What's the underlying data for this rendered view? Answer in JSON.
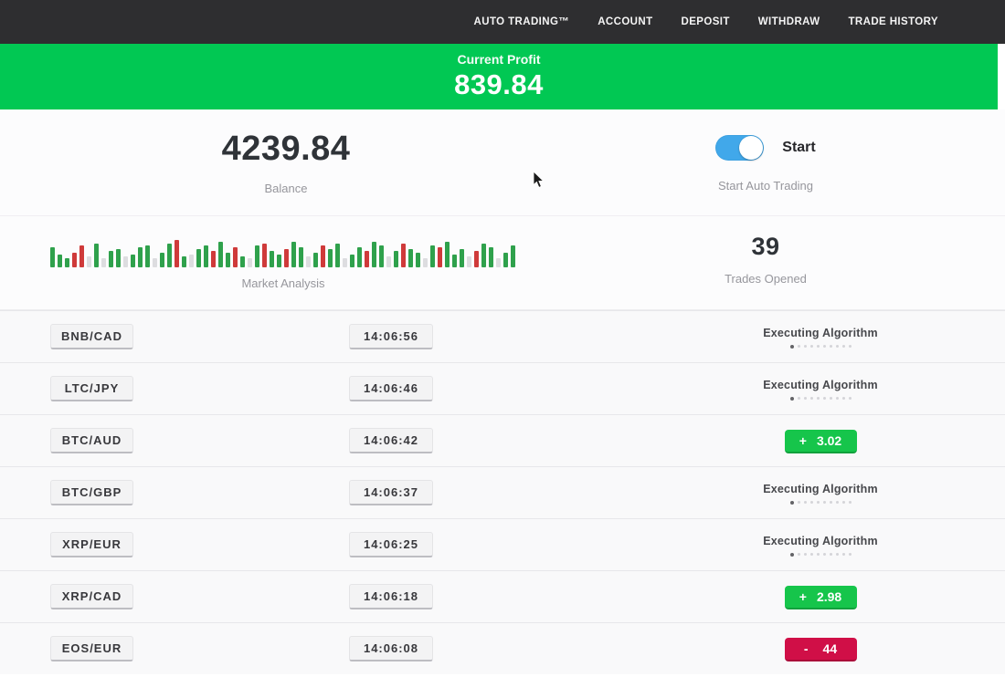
{
  "nav": {
    "items": [
      "AUTO TRADING™",
      "ACCOUNT",
      "DEPOSIT",
      "WITHDRAW",
      "TRADE HISTORY"
    ]
  },
  "banner": {
    "label": "Current Profit",
    "value": "839.84"
  },
  "stats": {
    "balance": {
      "value": "4239.84",
      "label": "Balance"
    },
    "auto_trading": {
      "toggle_label": "Start",
      "label": "Start Auto Trading",
      "toggle_on": true
    },
    "market_analysis": {
      "label": "Market Analysis",
      "bars": [
        [
          22,
          "g"
        ],
        [
          14,
          "g"
        ],
        [
          10,
          "g"
        ],
        [
          16,
          "r"
        ],
        [
          24,
          "r"
        ],
        [
          12,
          "n"
        ],
        [
          26,
          "g"
        ],
        [
          10,
          "n"
        ],
        [
          18,
          "g"
        ],
        [
          20,
          "g"
        ],
        [
          12,
          "n"
        ],
        [
          14,
          "g"
        ],
        [
          22,
          "g"
        ],
        [
          24,
          "g"
        ],
        [
          10,
          "n"
        ],
        [
          16,
          "g"
        ],
        [
          26,
          "g"
        ],
        [
          30,
          "r"
        ],
        [
          12,
          "g"
        ],
        [
          14,
          "n"
        ],
        [
          20,
          "g"
        ],
        [
          24,
          "g"
        ],
        [
          18,
          "r"
        ],
        [
          28,
          "g"
        ],
        [
          16,
          "g"
        ],
        [
          22,
          "r"
        ],
        [
          12,
          "g"
        ],
        [
          10,
          "n"
        ],
        [
          24,
          "g"
        ],
        [
          26,
          "r"
        ],
        [
          18,
          "g"
        ],
        [
          14,
          "g"
        ],
        [
          20,
          "r"
        ],
        [
          28,
          "g"
        ],
        [
          22,
          "g"
        ],
        [
          12,
          "n"
        ],
        [
          16,
          "g"
        ],
        [
          24,
          "r"
        ],
        [
          20,
          "g"
        ],
        [
          26,
          "g"
        ],
        [
          10,
          "n"
        ],
        [
          14,
          "g"
        ],
        [
          22,
          "g"
        ],
        [
          18,
          "r"
        ],
        [
          28,
          "g"
        ],
        [
          24,
          "g"
        ],
        [
          12,
          "n"
        ],
        [
          18,
          "g"
        ],
        [
          26,
          "r"
        ],
        [
          20,
          "g"
        ],
        [
          16,
          "g"
        ],
        [
          10,
          "n"
        ],
        [
          24,
          "g"
        ],
        [
          22,
          "r"
        ],
        [
          28,
          "g"
        ],
        [
          14,
          "g"
        ],
        [
          20,
          "g"
        ],
        [
          12,
          "n"
        ],
        [
          18,
          "r"
        ],
        [
          26,
          "g"
        ],
        [
          22,
          "g"
        ],
        [
          10,
          "n"
        ],
        [
          16,
          "g"
        ],
        [
          24,
          "g"
        ]
      ]
    },
    "trades_opened": {
      "value": "39",
      "label": "Trades Opened"
    }
  },
  "trades": [
    {
      "pair": "BNB/CAD",
      "time": "14:06:56",
      "status": "executing",
      "status_label": "Executing Algorithm"
    },
    {
      "pair": "LTC/JPY",
      "time": "14:06:46",
      "status": "executing",
      "status_label": "Executing Algorithm"
    },
    {
      "pair": "BTC/AUD",
      "time": "14:06:42",
      "status": "result",
      "result": "profit",
      "sign": "+",
      "value": "3.02"
    },
    {
      "pair": "BTC/GBP",
      "time": "14:06:37",
      "status": "executing",
      "status_label": "Executing Algorithm"
    },
    {
      "pair": "XRP/EUR",
      "time": "14:06:25",
      "status": "executing",
      "status_label": "Executing Algorithm"
    },
    {
      "pair": "XRP/CAD",
      "time": "14:06:18",
      "status": "result",
      "result": "profit",
      "sign": "+",
      "value": "2.98"
    },
    {
      "pair": "EOS/EUR",
      "time": "14:06:08",
      "status": "result",
      "result": "loss",
      "sign": "-",
      "value": "44"
    }
  ],
  "colors": {
    "banner_green": "#01c853",
    "badge_green": "#16c54b",
    "badge_red": "#d00f47",
    "toggle_blue": "#41a8ea",
    "nav_bg": "#2e2e30"
  }
}
